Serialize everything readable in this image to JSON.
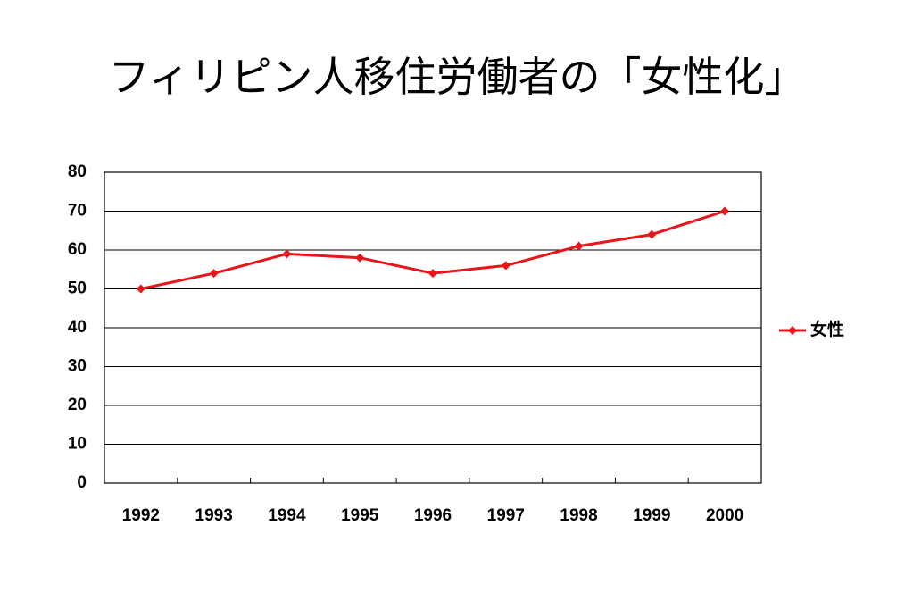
{
  "chart_data": {
    "type": "line",
    "title": "フィリピン人移住労働者の「女性化」",
    "categories": [
      "1992",
      "1993",
      "1994",
      "1995",
      "1996",
      "1997",
      "1998",
      "1999",
      "2000"
    ],
    "series": [
      {
        "name": "女性",
        "color": "#e8161b",
        "values": [
          50,
          54,
          59,
          58,
          54,
          56,
          61,
          64,
          70
        ]
      }
    ],
    "ylim": [
      0,
      80
    ],
    "yticks": [
      0,
      10,
      20,
      30,
      40,
      50,
      60,
      70,
      80
    ],
    "grid": true,
    "legend": "right"
  }
}
